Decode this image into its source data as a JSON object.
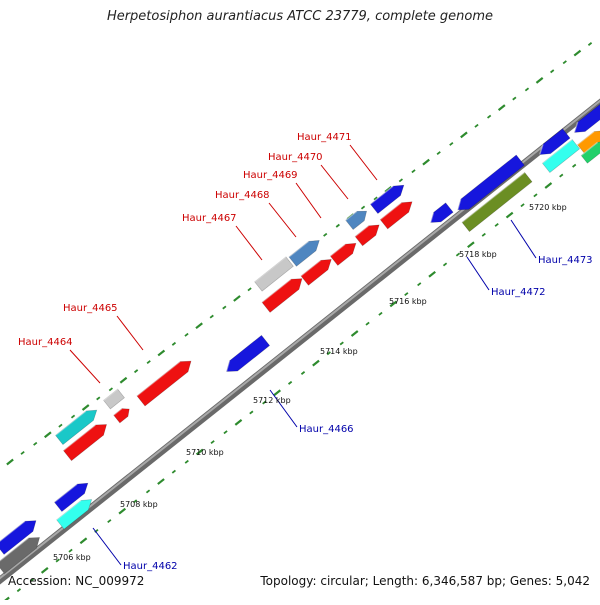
{
  "title": "Herpetosiphon aurantiacus ATCC 23779, complete genome",
  "footer": {
    "accession": "Accession: NC_009972",
    "topology": "Topology: circular; Length: 6,346,587 bp; Genes: 5,042"
  },
  "colors": {
    "backbone": "#8a8a8a",
    "tick": "#2e8b2e",
    "forward_label": "#cc0000",
    "reverse_label": "#0000aa",
    "red_gene": "#ee1111",
    "blue_gene": "#1616dd",
    "steelblue_gene": "#4f86c0",
    "gray_gene": "#c8c8c8",
    "darkgray_gene": "#6a6a6a",
    "cyan_gene": "#1ac8c8",
    "aqua_gene": "#33ffee",
    "olive_gene": "#6b8e23",
    "green_gene": "#22d06a",
    "orange_gene": "#ff9900"
  },
  "scale_labels": [
    {
      "text": "5706 kbp",
      "kbp": 5706
    },
    {
      "text": "5708 kbp",
      "kbp": 5708
    },
    {
      "text": "5710 kbp",
      "kbp": 5710
    },
    {
      "text": "5712 kbp",
      "kbp": 5712
    },
    {
      "text": "5714 kbp",
      "kbp": 5714
    },
    {
      "text": "5716 kbp",
      "kbp": 5716
    },
    {
      "text": "5718 kbp",
      "kbp": 5718
    },
    {
      "text": "5720 kbp",
      "kbp": 5720
    }
  ],
  "gene_labels": [
    {
      "text": "Haur_4464",
      "strand": "forward"
    },
    {
      "text": "Haur_4465",
      "strand": "forward"
    },
    {
      "text": "Haur_4467",
      "strand": "forward"
    },
    {
      "text": "Haur_4468",
      "strand": "forward"
    },
    {
      "text": "Haur_4469",
      "strand": "forward"
    },
    {
      "text": "Haur_4470",
      "strand": "forward"
    },
    {
      "text": "Haur_4471",
      "strand": "forward"
    },
    {
      "text": "Haur_4462",
      "strand": "reverse"
    },
    {
      "text": "Haur_4466",
      "strand": "reverse"
    },
    {
      "text": "Haur_4472",
      "strand": "reverse"
    },
    {
      "text": "Haur_4473",
      "strand": "reverse"
    }
  ]
}
